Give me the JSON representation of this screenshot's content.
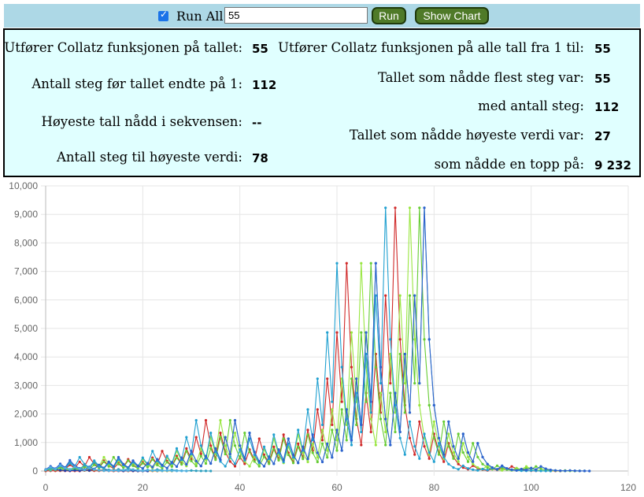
{
  "controls": {
    "run_all_label": "Run All",
    "run_all_checked": true,
    "number_input_value": "55",
    "run_button_label": "Run",
    "show_chart_button_label": "Show Chart",
    "checkmark": "✓"
  },
  "results": {
    "left": [
      {
        "label": "Utfører Collatz funksjonen på tallet:",
        "value": "55"
      },
      {
        "label": "Antall steg før tallet endte på 1:",
        "value": "112"
      },
      {
        "label": "Høyeste tall nådd i sekvensen:",
        "value": "--"
      },
      {
        "label": "Antall steg til høyeste verdi:",
        "value": "78"
      }
    ],
    "right": [
      {
        "label": "Utfører Collatz funksjonen på alle tall fra 1 til:",
        "value": "55"
      },
      {
        "label": "Tallet som nådde flest steg var:",
        "value": "55"
      },
      {
        "label": "med antall steg:",
        "value": "112"
      },
      {
        "label": "Tallet som nådde høyeste verdi var:",
        "value": "27"
      },
      {
        "label": "som nådde en topp på:",
        "value": "9 232"
      }
    ]
  },
  "chart_data": {
    "type": "line",
    "xlim": [
      0,
      120
    ],
    "ylim": [
      0,
      10000
    ],
    "x_ticks": [
      "0",
      "20",
      "40",
      "60",
      "80",
      "100",
      "120"
    ],
    "y_ticks": [
      "0",
      "1,000",
      "2,000",
      "3,000",
      "4,000",
      "5,000",
      "6,000",
      "7,000",
      "8,000",
      "9,000",
      "10,000"
    ],
    "grid": true,
    "series": [
      {
        "color": "#ff3030",
        "values": [
          3,
          10,
          5,
          16,
          8,
          4,
          2,
          1
        ]
      },
      {
        "color": "#e04040",
        "values": [
          7,
          22,
          11,
          34,
          17,
          52,
          26,
          13,
          40,
          20,
          10,
          5,
          16,
          8,
          4,
          2,
          1
        ]
      },
      {
        "color": "#d03a3a",
        "values": [
          9,
          28,
          14,
          7,
          22,
          11,
          34,
          17,
          52,
          26,
          13,
          40,
          20,
          10,
          5,
          16,
          8,
          4,
          2,
          1
        ]
      },
      {
        "color": "#c84040",
        "values": [
          18,
          9,
          28,
          14,
          7,
          22,
          11,
          34,
          17,
          52,
          26,
          13,
          40,
          20,
          10,
          5,
          16,
          8,
          4,
          2,
          1
        ]
      },
      {
        "color": "#e07020",
        "values": [
          25,
          76,
          38,
          19,
          58,
          29,
          88,
          44,
          22,
          11,
          34,
          17,
          52,
          26,
          13,
          40,
          20,
          10,
          5,
          16,
          8,
          4,
          2,
          1
        ]
      },
      {
        "color": "#c8a020",
        "values": [
          33,
          100,
          50,
          25,
          76,
          38,
          19,
          58,
          29,
          88,
          44,
          22,
          11,
          34,
          17,
          52,
          26,
          13,
          40,
          20,
          10,
          5,
          16,
          8,
          4,
          2,
          1
        ]
      },
      {
        "color": "#d02828",
        "values": [
          31,
          94,
          47,
          142,
          71,
          214,
          107,
          322,
          161,
          484,
          242,
          121,
          364,
          182,
          91,
          274,
          137,
          412,
          206,
          103,
          310,
          155,
          466,
          233,
          700,
          350,
          175,
          526,
          263,
          790,
          395,
          1186,
          593,
          1780,
          890,
          445,
          1336,
          668,
          334,
          167,
          502,
          251,
          754,
          377,
          1132,
          566,
          283,
          850,
          425,
          1276,
          638,
          319,
          958,
          479,
          1438,
          719,
          2158,
          1079,
          3238,
          1619,
          4858,
          2429,
          7288,
          3644,
          1822,
          911,
          2734,
          1367,
          4102,
          2051,
          6154,
          3077,
          9232,
          4616,
          2308,
          1154,
          577,
          1732,
          866,
          433,
          1300,
          650,
          325,
          976,
          488,
          244,
          122,
          61,
          184,
          92,
          46,
          23,
          70,
          35,
          106,
          53,
          160,
          80,
          40,
          20,
          10,
          5,
          16,
          8,
          4,
          2,
          1
        ]
      },
      {
        "color": "#66cc33",
        "values": [
          27,
          82,
          41,
          124,
          62,
          31,
          94,
          47,
          142,
          71,
          214,
          107,
          322,
          161,
          484,
          242,
          121,
          364,
          182,
          91,
          274,
          137,
          412,
          206,
          103,
          310,
          155,
          466,
          233,
          700,
          350,
          175,
          526,
          263,
          790,
          395,
          1186,
          593,
          1780,
          890,
          445,
          1336,
          668,
          334,
          167,
          502,
          251,
          754,
          377,
          1132,
          566,
          283,
          850,
          425,
          1276,
          638,
          319,
          958,
          479,
          1438,
          719,
          2158,
          1079,
          3238,
          1619,
          4858,
          2429,
          7288,
          3644,
          1822,
          911,
          2734,
          1367,
          4102,
          2051,
          6154,
          3077,
          9232,
          4616,
          2308,
          1154,
          577,
          1732,
          866,
          433,
          1300,
          650,
          325,
          976,
          488,
          244,
          122,
          61,
          184,
          92,
          46,
          23,
          70,
          35,
          106,
          53,
          160,
          80,
          40,
          20,
          10,
          5,
          16,
          8,
          4,
          2,
          1
        ]
      },
      {
        "color": "#99e640",
        "values": [
          41,
          124,
          62,
          31,
          94,
          47,
          142,
          71,
          214,
          107,
          322,
          161,
          484,
          242,
          121,
          364,
          182,
          91,
          274,
          137,
          412,
          206,
          103,
          310,
          155,
          466,
          233,
          700,
          350,
          175,
          526,
          263,
          790,
          395,
          1186,
          593,
          1780,
          890,
          445,
          1336,
          668,
          334,
          167,
          502,
          251,
          754,
          377,
          1132,
          566,
          283,
          850,
          425,
          1276,
          638,
          319,
          958,
          479,
          1438,
          719,
          2158,
          1079,
          3238,
          1619,
          4858,
          2429,
          7288,
          3644,
          1822,
          911,
          2734,
          1367,
          4102,
          2051,
          6154,
          3077,
          9232,
          4616,
          2308,
          1154,
          577,
          1732,
          866,
          433,
          1300,
          650,
          325,
          976,
          488,
          244,
          122,
          61,
          184,
          92,
          46,
          23,
          70,
          35,
          106,
          53,
          160,
          80,
          40,
          20,
          10,
          5,
          16,
          8,
          4,
          2,
          1
        ]
      },
      {
        "color": "#40c8a0",
        "values": [
          54,
          27,
          82,
          41,
          124,
          62,
          31,
          94,
          47,
          142,
          71,
          214,
          107,
          322,
          161,
          484,
          242,
          121,
          364,
          182,
          91,
          274,
          137,
          412,
          206,
          103,
          310,
          155,
          466,
          233,
          700,
          350,
          175,
          526,
          263,
          790,
          395,
          1186,
          593,
          1780,
          890,
          445,
          1336,
          668,
          334,
          167,
          502,
          251,
          754,
          377,
          1132,
          566,
          283,
          850,
          425,
          1276,
          638,
          319,
          958,
          479,
          1438,
          719,
          2158,
          1079,
          3238,
          1619,
          4858,
          2429,
          7288,
          3644,
          1822,
          911,
          2734,
          1367,
          4102,
          2051,
          6154,
          3077,
          9232,
          4616,
          2308,
          1154,
          577,
          1732,
          866,
          433,
          1300,
          650,
          325,
          976,
          488,
          244,
          122,
          61,
          184,
          92,
          46,
          23,
          70,
          35,
          106,
          53,
          160,
          80,
          40,
          20,
          10,
          5,
          16,
          8,
          4,
          2,
          1
        ]
      },
      {
        "color": "#20a0d0",
        "values": [
          47,
          142,
          71,
          214,
          107,
          322,
          161,
          484,
          242,
          121,
          364,
          182,
          91,
          274,
          137,
          412,
          206,
          103,
          310,
          155,
          466,
          233,
          700,
          350,
          175,
          526,
          263,
          790,
          395,
          1186,
          593,
          1780,
          890,
          445,
          1336,
          668,
          334,
          167,
          502,
          251,
          754,
          377,
          1132,
          566,
          283,
          850,
          425,
          1276,
          638,
          319,
          958,
          479,
          1438,
          719,
          2158,
          1079,
          3238,
          1619,
          4858,
          2429,
          7288,
          3644,
          1822,
          911,
          2734,
          1367,
          4102,
          2051,
          6154,
          3077,
          9232,
          4616,
          2308,
          1154,
          577,
          1732,
          866,
          433,
          1300,
          650,
          325,
          976,
          488,
          244,
          122,
          61,
          184,
          92,
          46,
          23,
          70,
          35,
          106,
          53,
          160,
          80,
          40,
          20,
          10,
          5,
          16,
          8,
          4,
          2,
          1
        ]
      },
      {
        "color": "#3060d0",
        "values": [
          55,
          166,
          83,
          250,
          125,
          376,
          188,
          94,
          47,
          142,
          71,
          214,
          107,
          322,
          161,
          484,
          242,
          121,
          364,
          182,
          91,
          274,
          137,
          412,
          206,
          103,
          310,
          155,
          466,
          233,
          700,
          350,
          175,
          526,
          263,
          790,
          395,
          1186,
          593,
          1780,
          890,
          445,
          1336,
          668,
          334,
          167,
          502,
          251,
          754,
          377,
          1132,
          566,
          283,
          850,
          425,
          1276,
          638,
          319,
          958,
          479,
          1438,
          719,
          2158,
          1079,
          3238,
          1619,
          4858,
          2429,
          7288,
          3644,
          1822,
          911,
          2734,
          1367,
          4102,
          2051,
          6154,
          3077,
          9232,
          4616,
          2308,
          1154,
          577,
          1732,
          866,
          433,
          1300,
          650,
          325,
          976,
          488,
          244,
          122,
          61,
          184,
          92,
          46,
          23,
          70,
          35,
          106,
          53,
          160,
          80,
          40,
          20,
          10,
          5,
          16,
          8,
          4,
          2,
          1
        ]
      },
      {
        "color": "#2040b0",
        "values": [
          37,
          112,
          56,
          28,
          14,
          7,
          22,
          11,
          34,
          17,
          52,
          26,
          13,
          40,
          20,
          10,
          5,
          16,
          8,
          4,
          2,
          1
        ]
      },
      {
        "color": "#30a0c0",
        "values": [
          39,
          118,
          59,
          178,
          89,
          268,
          134,
          67,
          202,
          101,
          304,
          152,
          76,
          38,
          19,
          58,
          29,
          88,
          44,
          22,
          11,
          34,
          17,
          52,
          26,
          13,
          40,
          20,
          10,
          5,
          16,
          8,
          4,
          2,
          1
        ]
      },
      {
        "color": "#50b0e0",
        "values": [
          43,
          130,
          65,
          196,
          98,
          49,
          148,
          74,
          37,
          112,
          56,
          28,
          14,
          7,
          22,
          11,
          34,
          17,
          52,
          26,
          13,
          40,
          20,
          10,
          5,
          16,
          8,
          4,
          2,
          1
        ]
      }
    ]
  }
}
